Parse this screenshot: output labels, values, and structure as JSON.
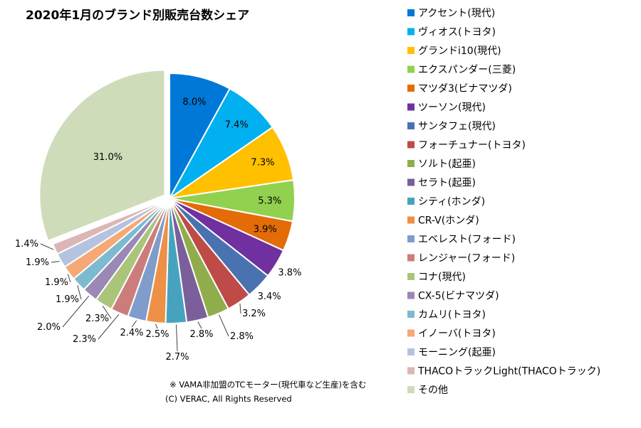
{
  "chart_data": {
    "type": "pie",
    "title": "2020年1月のブランド別販売台数シェア",
    "legend_position": "right",
    "slices": [
      {
        "label": "アクセント(現代)",
        "value": 8.0,
        "display": "8.0%",
        "color": "#0078d7"
      },
      {
        "label": "ヴィオス(トヨタ)",
        "value": 7.4,
        "display": "7.4%",
        "color": "#00b0f0"
      },
      {
        "label": "グランドi10(現代)",
        "value": 7.3,
        "display": "7.3%",
        "color": "#ffc000"
      },
      {
        "label": "エクスパンダー(三菱)",
        "value": 5.3,
        "display": "5.3%",
        "color": "#92d050"
      },
      {
        "label": "マツダ3(ビナマツダ)",
        "value": 3.9,
        "display": "3.9%",
        "color": "#e36c09"
      },
      {
        "label": "ツーソン(現代)",
        "value": 3.8,
        "display": "3.8%",
        "color": "#7030a0"
      },
      {
        "label": "サンタフェ(現代)",
        "value": 3.4,
        "display": "3.4%",
        "color": "#4a72b0"
      },
      {
        "label": "フォーチュナー(トヨタ)",
        "value": 3.2,
        "display": "3.2%",
        "color": "#be4b48"
      },
      {
        "label": "ソルト(起亜)",
        "value": 2.8,
        "display": "2.8%",
        "color": "#8fae4b"
      },
      {
        "label": "セラト(起亜)",
        "value": 2.8,
        "display": "2.8%",
        "color": "#7a5f9b"
      },
      {
        "label": "シティ(ホンダ)",
        "value": 2.7,
        "display": "2.7%",
        "color": "#47a3bd"
      },
      {
        "label": "CR-V(ホンダ)",
        "value": 2.5,
        "display": "2.5%",
        "color": "#ee9046"
      },
      {
        "label": "エベレスト(フォード)",
        "value": 2.4,
        "display": "2.4%",
        "color": "#7f9ccb"
      },
      {
        "label": "レンジャー(フォード)",
        "value": 2.3,
        "display": "2.3%",
        "color": "#cc7d7b"
      },
      {
        "label": "コナ(現代)",
        "value": 2.3,
        "display": "2.3%",
        "color": "#aac579"
      },
      {
        "label": "CX-5(ビナマツダ)",
        "value": 2.0,
        "display": "2.0%",
        "color": "#9b88b6"
      },
      {
        "label": "カムリ(トヨタ)",
        "value": 1.9,
        "display": "1.9%",
        "color": "#7cbbcf"
      },
      {
        "label": "イノーバ(トヨタ)",
        "value": 1.9,
        "display": "1.9%",
        "color": "#f6a877"
      },
      {
        "label": "モーニング(起亜)",
        "value": 1.9,
        "display": "1.9%",
        "color": "#b4c3e0"
      },
      {
        "label": "THACOトラックLight(THACOトラック)",
        "value": 1.4,
        "display": "1.4%",
        "color": "#dcb6b6"
      },
      {
        "label": "その他",
        "value": 31.0,
        "display": "31.0%",
        "color": "#cfdcb9"
      }
    ]
  },
  "footnote": {
    "line1": "※ VAMA非加盟のTCモーター(現代車など生産)を含む",
    "line2": "(C) VERAC, All Rights Reserved"
  }
}
